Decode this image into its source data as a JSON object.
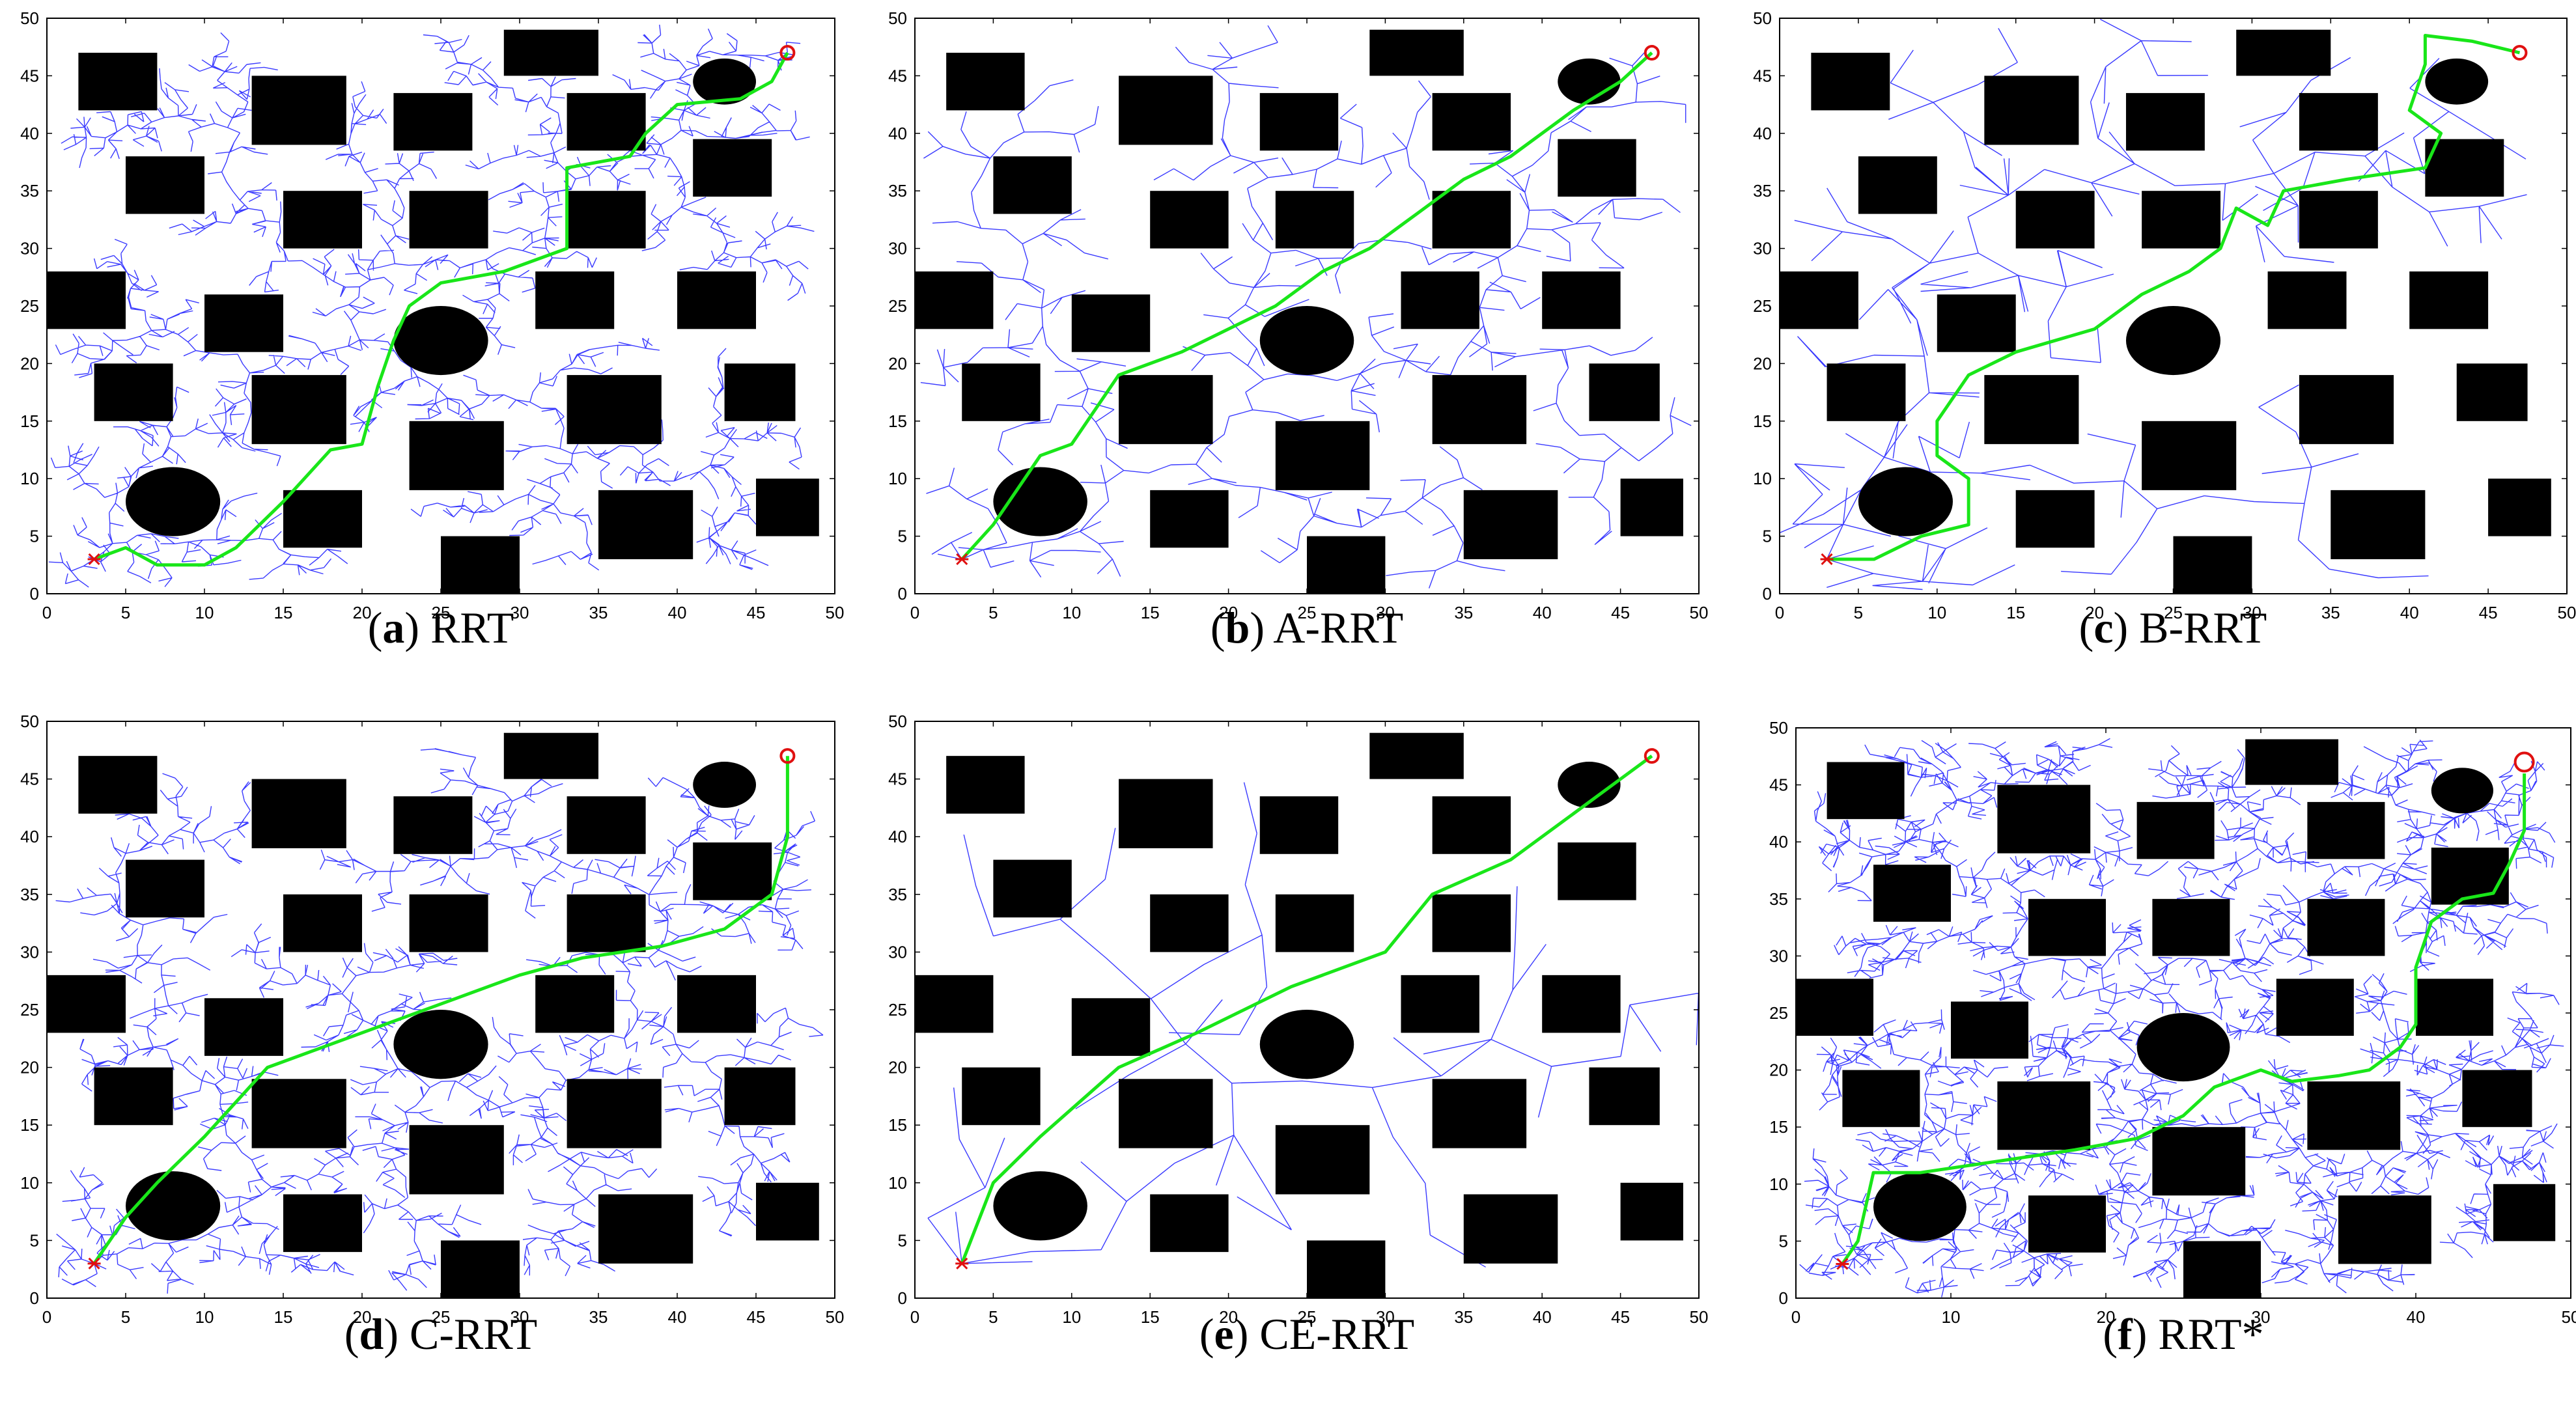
{
  "colors": {
    "tree": "#3a3aff",
    "path": "#19e619",
    "obstacle": "#000000",
    "start": "#e01010",
    "goal": "#e01010"
  },
  "chart_data": [
    {
      "type": "scatter",
      "panel_letter": "a",
      "panel_title": "RRT",
      "xlim": [
        0,
        50
      ],
      "ylim": [
        0,
        50
      ],
      "xticks": [
        0,
        5,
        10,
        15,
        20,
        25,
        30,
        35,
        40,
        45,
        50
      ],
      "yticks": [
        0,
        5,
        10,
        15,
        20,
        25,
        30,
        35,
        40,
        45,
        50
      ],
      "start": [
        3,
        3
      ],
      "goal": [
        47,
        47
      ],
      "tree_density": "dense",
      "path": [
        [
          3,
          3
        ],
        [
          5,
          4
        ],
        [
          7,
          2.5
        ],
        [
          10,
          2.5
        ],
        [
          12,
          4
        ],
        [
          15,
          8
        ],
        [
          18,
          12.5
        ],
        [
          20,
          13
        ],
        [
          21,
          18
        ],
        [
          22,
          22
        ],
        [
          23,
          25
        ],
        [
          25,
          27
        ],
        [
          29,
          28
        ],
        [
          33,
          30
        ],
        [
          33,
          35
        ],
        [
          33,
          37
        ],
        [
          37,
          38
        ],
        [
          38,
          40
        ],
        [
          40,
          42.5
        ],
        [
          44,
          43
        ],
        [
          46,
          44.5
        ],
        [
          47,
          47
        ]
      ]
    },
    {
      "type": "scatter",
      "panel_letter": "b",
      "panel_title": "A-RRT",
      "xlim": [
        0,
        50
      ],
      "ylim": [
        0,
        50
      ],
      "xticks": [
        0,
        5,
        10,
        15,
        20,
        25,
        30,
        35,
        40,
        45,
        50
      ],
      "yticks": [
        0,
        5,
        10,
        15,
        20,
        25,
        30,
        35,
        40,
        45,
        50
      ],
      "start": [
        3,
        3
      ],
      "goal": [
        47,
        47
      ],
      "tree_density": "medium",
      "path": [
        [
          3,
          3
        ],
        [
          5,
          6
        ],
        [
          7,
          10
        ],
        [
          8,
          12
        ],
        [
          10,
          13
        ],
        [
          13,
          19
        ],
        [
          17,
          21
        ],
        [
          20,
          23
        ],
        [
          23,
          25
        ],
        [
          26,
          28
        ],
        [
          29,
          30
        ],
        [
          32,
          33
        ],
        [
          35,
          36
        ],
        [
          38,
          38
        ],
        [
          42,
          42
        ],
        [
          45,
          44.5
        ],
        [
          47,
          47
        ]
      ]
    },
    {
      "type": "scatter",
      "panel_letter": "c",
      "panel_title": "B-RRT",
      "xlim": [
        0,
        50
      ],
      "ylim": [
        0,
        50
      ],
      "xticks": [
        0,
        5,
        10,
        15,
        20,
        25,
        30,
        35,
        40,
        45,
        50
      ],
      "yticks": [
        0,
        5,
        10,
        15,
        20,
        25,
        30,
        35,
        40,
        45,
        50
      ],
      "start": [
        3,
        3
      ],
      "goal": [
        47,
        47
      ],
      "tree_density": "sparse",
      "path": [
        [
          3,
          3
        ],
        [
          6,
          3
        ],
        [
          9,
          5
        ],
        [
          12,
          6
        ],
        [
          12,
          10
        ],
        [
          10,
          12
        ],
        [
          10,
          15
        ],
        [
          12,
          19
        ],
        [
          15,
          21
        ],
        [
          20,
          23
        ],
        [
          23,
          26
        ],
        [
          26,
          28
        ],
        [
          28,
          30
        ],
        [
          29,
          33.5
        ],
        [
          31,
          32
        ],
        [
          32,
          35
        ],
        [
          36,
          36
        ],
        [
          41,
          37
        ],
        [
          42,
          40
        ],
        [
          40,
          42
        ],
        [
          41,
          46
        ],
        [
          41,
          48.5
        ],
        [
          44,
          48
        ],
        [
          47,
          47
        ]
      ]
    },
    {
      "type": "scatter",
      "panel_letter": "d",
      "panel_title": "C-RRT",
      "xlim": [
        0,
        50
      ],
      "ylim": [
        0,
        50
      ],
      "xticks": [
        0,
        5,
        10,
        15,
        20,
        25,
        30,
        35,
        40,
        45,
        50
      ],
      "yticks": [
        0,
        5,
        10,
        15,
        20,
        25,
        30,
        35,
        40,
        45,
        50
      ],
      "start": [
        3,
        3
      ],
      "goal": [
        47,
        47
      ],
      "tree_density": "dense",
      "path": [
        [
          3,
          3
        ],
        [
          5,
          7
        ],
        [
          7,
          10
        ],
        [
          10,
          14
        ],
        [
          14,
          20
        ],
        [
          18,
          22
        ],
        [
          22,
          24
        ],
        [
          26,
          26
        ],
        [
          30,
          28
        ],
        [
          34,
          29.5
        ],
        [
          39,
          30.5
        ],
        [
          43,
          32
        ],
        [
          46,
          35
        ],
        [
          47,
          40
        ],
        [
          47,
          47
        ]
      ]
    },
    {
      "type": "scatter",
      "panel_letter": "e",
      "panel_title": "CE-RRT",
      "xlim": [
        0,
        50
      ],
      "ylim": [
        0,
        50
      ],
      "xticks": [
        0,
        5,
        10,
        15,
        20,
        25,
        30,
        35,
        40,
        45,
        50
      ],
      "yticks": [
        0,
        5,
        10,
        15,
        20,
        25,
        30,
        35,
        40,
        45,
        50
      ],
      "start": [
        3,
        3
      ],
      "goal": [
        47,
        47
      ],
      "tree_density": "very sparse",
      "path": [
        [
          3,
          3
        ],
        [
          5,
          10
        ],
        [
          8,
          14
        ],
        [
          13,
          20
        ],
        [
          18,
          23
        ],
        [
          24,
          27
        ],
        [
          30,
          30
        ],
        [
          33,
          35
        ],
        [
          38,
          38
        ],
        [
          42,
          42
        ],
        [
          45,
          45
        ],
        [
          47,
          47
        ]
      ]
    },
    {
      "type": "scatter",
      "panel_letter": "f",
      "panel_title": "RRT*",
      "xlim": [
        0,
        50
      ],
      "ylim": [
        0,
        50
      ],
      "xticks": [
        0,
        10,
        20,
        30,
        40,
        50
      ],
      "yticks": [
        0,
        5,
        10,
        15,
        20,
        25,
        30,
        35,
        40,
        45,
        50
      ],
      "start": [
        3,
        3
      ],
      "goal": [
        47,
        47
      ],
      "tree_density": "very dense",
      "path": [
        [
          3,
          3
        ],
        [
          4,
          5
        ],
        [
          5,
          11
        ],
        [
          8,
          11
        ],
        [
          13,
          12
        ],
        [
          18,
          13
        ],
        [
          22,
          14
        ],
        [
          25,
          16
        ],
        [
          27,
          18.5
        ],
        [
          30,
          20
        ],
        [
          32,
          19
        ],
        [
          35,
          19.5
        ],
        [
          37,
          20
        ],
        [
          39,
          22
        ],
        [
          40,
          24
        ],
        [
          40,
          29
        ],
        [
          41,
          33
        ],
        [
          43,
          35
        ],
        [
          45,
          35.5
        ],
        [
          46,
          38
        ],
        [
          47,
          41
        ],
        [
          47,
          46
        ]
      ]
    }
  ],
  "obstacles": {
    "layout_1": {
      "rects": [
        [
          2,
          42,
          5,
          5
        ],
        [
          13,
          39,
          6,
          6
        ],
        [
          22,
          38.5,
          5,
          5
        ],
        [
          33,
          38.5,
          5,
          5
        ],
        [
          29,
          45,
          6,
          4
        ],
        [
          41,
          34.5,
          5,
          5
        ],
        [
          5,
          33,
          5,
          5
        ],
        [
          15,
          30,
          5,
          5
        ],
        [
          23,
          30,
          5,
          5
        ],
        [
          33,
          30,
          5,
          5
        ],
        [
          0,
          23,
          5,
          5
        ],
        [
          10,
          21,
          5,
          5
        ],
        [
          31,
          23,
          5,
          5
        ],
        [
          40,
          23,
          5,
          5
        ],
        [
          3,
          15,
          5,
          5
        ],
        [
          13,
          13,
          6,
          6
        ],
        [
          33,
          13,
          6,
          6
        ],
        [
          43,
          15,
          4.5,
          5
        ],
        [
          23,
          9,
          6,
          6
        ],
        [
          15,
          4,
          5,
          5
        ],
        [
          35,
          3,
          6,
          6
        ],
        [
          45,
          5,
          4,
          5
        ],
        [
          25,
          0,
          5,
          5
        ]
      ],
      "ellipses": [
        [
          8,
          8,
          3,
          3
        ],
        [
          25,
          22,
          3,
          3
        ],
        [
          43,
          44.5,
          2,
          2
        ]
      ]
    }
  }
}
